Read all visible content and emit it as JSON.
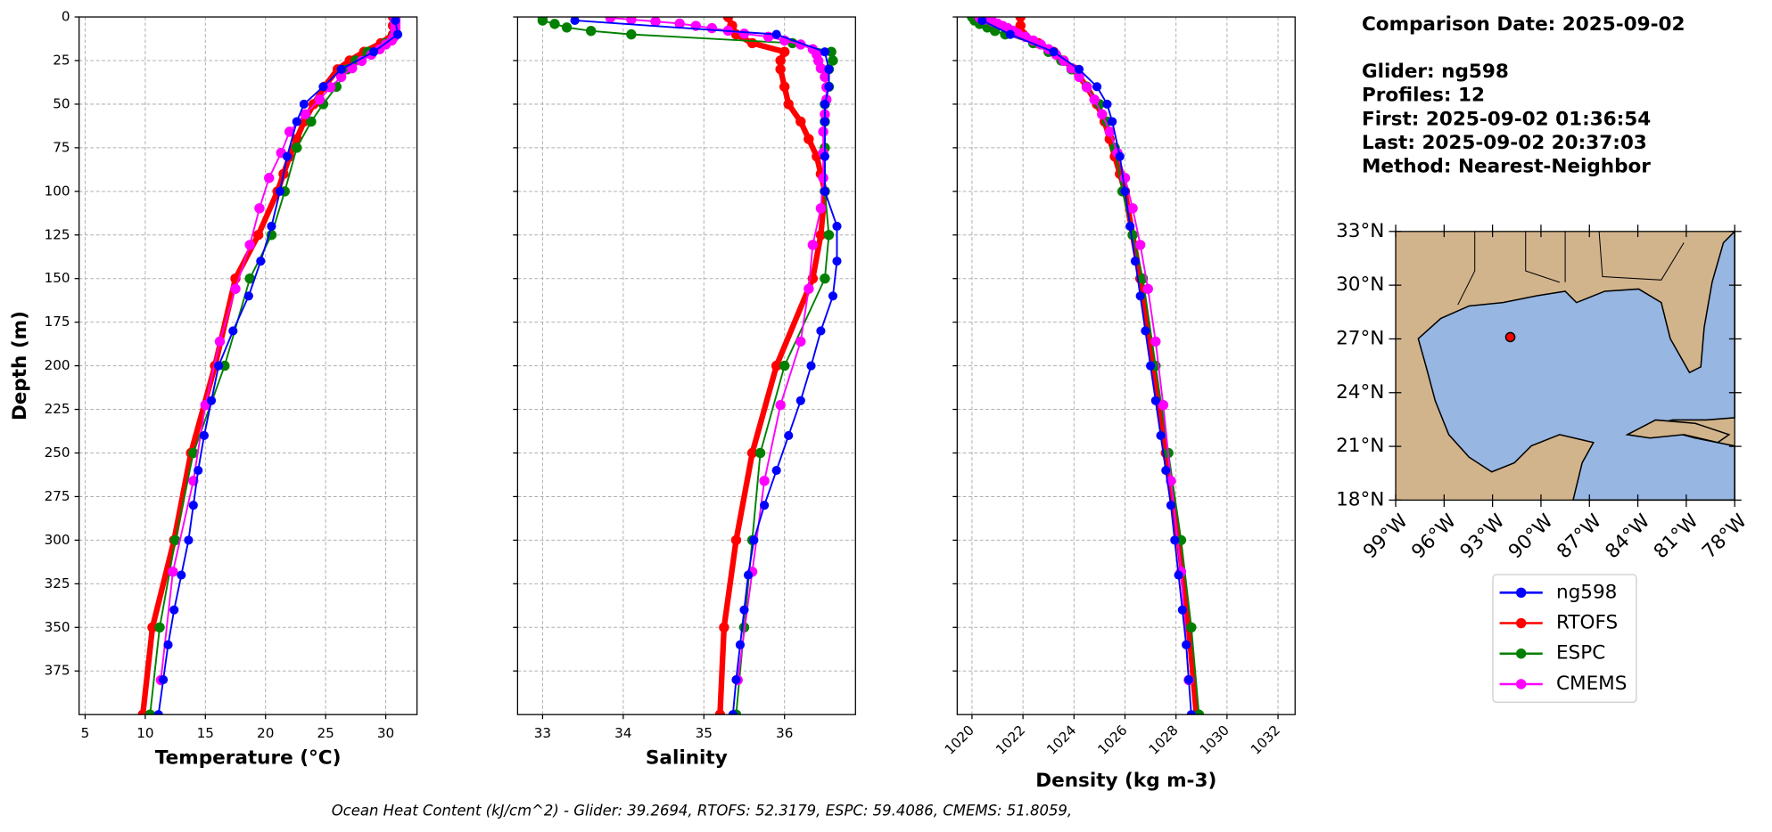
{
  "chart_data": [
    {
      "type": "line",
      "xlabel": "Temperature (°C)",
      "ylabel": "Depth (m)",
      "ytick_labels": true,
      "xlim": [
        4.5,
        32.6
      ],
      "xticks": [
        5,
        10,
        15,
        20,
        25,
        30
      ],
      "ylim": [
        0,
        400
      ],
      "yinvert": true,
      "yticks": [
        0,
        25,
        50,
        75,
        100,
        125,
        150,
        175,
        200,
        225,
        250,
        275,
        300,
        325,
        350,
        375
      ],
      "grid": true,
      "series": [
        {
          "name": "ng598",
          "color": "#0000ff",
          "depth": [
            2,
            10,
            20,
            30,
            40,
            50,
            60,
            80,
            100,
            120,
            140,
            160,
            180,
            200,
            220,
            240,
            260,
            280,
            300,
            320,
            340,
            360,
            380,
            400
          ],
          "values": [
            30.8,
            31.0,
            29.0,
            26.3,
            24.8,
            23.2,
            22.6,
            21.8,
            21.2,
            20.5,
            19.6,
            18.6,
            17.3,
            16.1,
            15.5,
            14.9,
            14.4,
            14.0,
            13.6,
            13.0,
            12.4,
            11.9,
            11.5,
            11.1
          ]
        },
        {
          "name": "RTOFS",
          "color": "#ff0000",
          "depth": [
            0,
            5,
            10,
            15,
            20,
            25,
            30,
            40,
            50,
            60,
            70,
            80,
            90,
            100,
            125,
            150,
            200,
            250,
            300,
            350,
            400
          ],
          "values": [
            30.6,
            30.6,
            30.6,
            29.6,
            28.2,
            27.0,
            26.0,
            24.9,
            24.0,
            23.2,
            22.6,
            22.0,
            21.5,
            21.0,
            19.4,
            17.5,
            15.8,
            13.8,
            12.4,
            10.6,
            9.8
          ]
        },
        {
          "name": "ESPC",
          "color": "#008000",
          "depth": [
            0,
            2,
            4,
            6,
            8,
            10,
            15,
            20,
            25,
            30,
            40,
            50,
            60,
            75,
            100,
            125,
            150,
            200,
            250,
            300,
            350,
            400
          ],
          "values": [
            30.8,
            30.8,
            30.8,
            30.8,
            30.8,
            30.7,
            30.0,
            28.5,
            27.5,
            26.8,
            25.9,
            24.8,
            23.8,
            22.6,
            21.6,
            20.5,
            18.7,
            16.6,
            14.0,
            12.5,
            11.2,
            10.4
          ]
        },
        {
          "name": "CMEMS",
          "color": "#ff00ff",
          "depth": [
            0.5,
            1.5,
            2.6,
            3.8,
            5.1,
            6.4,
            7.9,
            9.6,
            11.4,
            13.5,
            15.8,
            18.5,
            21.6,
            25.2,
            29.4,
            34.4,
            40.3,
            47.4,
            55.8,
            65.8,
            77.9,
            92.3,
            109.7,
            130.7,
            155.9,
            186.1,
            222.5,
            266.0,
            318.1,
            380.2
          ],
          "values": [
            30.8,
            30.8,
            30.8,
            30.8,
            30.8,
            30.8,
            30.8,
            30.8,
            30.7,
            30.5,
            30.0,
            29.5,
            28.8,
            28.0,
            27.2,
            26.3,
            25.4,
            24.5,
            23.3,
            22.0,
            21.3,
            20.3,
            19.5,
            18.7,
            17.5,
            16.2,
            15.0,
            14.0,
            12.3,
            11.3
          ]
        }
      ]
    },
    {
      "type": "line",
      "xlabel": "Salinity",
      "ytick_labels": false,
      "xlim": [
        32.69,
        36.88
      ],
      "xticks": [
        33,
        34,
        35,
        36
      ],
      "ylim": [
        0,
        400
      ],
      "yinvert": true,
      "yticks": [
        0,
        25,
        50,
        75,
        100,
        125,
        150,
        175,
        200,
        225,
        250,
        275,
        300,
        325,
        350,
        375
      ],
      "grid": true,
      "series": [
        {
          "name": "ng598",
          "color": "#0000ff",
          "depth": [
            2,
            10,
            20,
            30,
            40,
            50,
            60,
            80,
            100,
            120,
            140,
            160,
            180,
            200,
            220,
            240,
            260,
            280,
            300,
            320,
            340,
            360,
            380,
            400
          ],
          "values": [
            33.4,
            35.9,
            36.5,
            36.55,
            36.55,
            36.5,
            36.5,
            36.5,
            36.5,
            36.65,
            36.65,
            36.6,
            36.45,
            36.33,
            36.2,
            36.05,
            35.9,
            35.75,
            35.62,
            35.55,
            35.5,
            35.45,
            35.4,
            35.36
          ]
        },
        {
          "name": "RTOFS",
          "color": "#ff0000",
          "depth": [
            0,
            5,
            10,
            15,
            20,
            25,
            30,
            40,
            50,
            60,
            70,
            80,
            90,
            100,
            125,
            150,
            200,
            250,
            300,
            350,
            400
          ],
          "values": [
            35.3,
            35.35,
            35.4,
            35.6,
            36.0,
            35.95,
            35.95,
            36.0,
            36.05,
            36.2,
            36.3,
            36.4,
            36.45,
            36.5,
            36.45,
            36.35,
            35.9,
            35.6,
            35.4,
            35.25,
            35.2
          ]
        },
        {
          "name": "ESPC",
          "color": "#008000",
          "depth": [
            0,
            2,
            4,
            6,
            8,
            10,
            15,
            20,
            25,
            30,
            40,
            50,
            60,
            75,
            100,
            125,
            150,
            200,
            250,
            300,
            350,
            400
          ],
          "values": [
            33.0,
            33.0,
            33.15,
            33.3,
            33.6,
            34.1,
            36.1,
            36.58,
            36.6,
            36.55,
            36.55,
            36.5,
            36.5,
            36.5,
            36.5,
            36.55,
            36.5,
            36.0,
            35.7,
            35.6,
            35.5,
            35.4
          ]
        },
        {
          "name": "CMEMS",
          "color": "#ff00ff",
          "depth": [
            0.5,
            1.5,
            2.6,
            3.8,
            5.1,
            6.4,
            7.9,
            9.6,
            11.4,
            13.5,
            15.8,
            18.5,
            21.6,
            25.2,
            29.4,
            34.4,
            40.3,
            47.4,
            55.8,
            65.8,
            77.9,
            92.3,
            109.7,
            130.7,
            155.9,
            186.1,
            222.5,
            266.0,
            318.1,
            380.2
          ],
          "values": [
            33.84,
            34.1,
            34.4,
            34.7,
            34.9,
            35.1,
            35.3,
            35.5,
            35.8,
            36.0,
            36.2,
            36.35,
            36.4,
            36.42,
            36.45,
            36.5,
            36.52,
            36.52,
            36.5,
            36.48,
            36.48,
            36.48,
            36.45,
            36.35,
            36.3,
            36.2,
            35.95,
            35.75,
            35.6,
            35.42
          ]
        }
      ]
    },
    {
      "type": "line",
      "xlabel": "Density (kg m-3)",
      "ytick_labels": false,
      "xlim": [
        1019.42,
        1032.67
      ],
      "xticks": [
        1020,
        1022,
        1024,
        1026,
        1028,
        1030,
        1032
      ],
      "ylim": [
        0,
        400
      ],
      "yinvert": true,
      "yticks": [
        0,
        25,
        50,
        75,
        100,
        125,
        150,
        175,
        200,
        225,
        250,
        275,
        300,
        325,
        350,
        375
      ],
      "grid": true,
      "series": [
        {
          "name": "ng598",
          "color": "#0000ff",
          "depth": [
            2,
            10,
            20,
            30,
            40,
            50,
            60,
            80,
            100,
            120,
            140,
            160,
            180,
            200,
            220,
            240,
            260,
            280,
            300,
            320,
            340,
            360,
            380,
            400
          ],
          "values": [
            1020.4,
            1021.5,
            1023.2,
            1024.2,
            1024.9,
            1025.3,
            1025.5,
            1025.8,
            1026.0,
            1026.2,
            1026.4,
            1026.6,
            1026.8,
            1027.0,
            1027.2,
            1027.4,
            1027.6,
            1027.8,
            1027.95,
            1028.1,
            1028.25,
            1028.4,
            1028.5,
            1028.6
          ]
        },
        {
          "name": "RTOFS",
          "color": "#ff0000",
          "depth": [
            0,
            5,
            10,
            15,
            20,
            25,
            30,
            40,
            50,
            60,
            70,
            80,
            90,
            100,
            125,
            150,
            200,
            250,
            300,
            350,
            400
          ],
          "values": [
            1021.9,
            1021.9,
            1022.0,
            1022.6,
            1023.2,
            1023.6,
            1024.0,
            1024.5,
            1024.9,
            1025.2,
            1025.4,
            1025.6,
            1025.8,
            1026.0,
            1026.3,
            1026.6,
            1027.1,
            1027.6,
            1028.1,
            1028.5,
            1028.8
          ]
        },
        {
          "name": "ESPC",
          "color": "#008000",
          "depth": [
            0,
            2,
            4,
            6,
            8,
            10,
            15,
            20,
            25,
            30,
            40,
            50,
            60,
            75,
            100,
            125,
            150,
            200,
            250,
            300,
            350,
            400
          ],
          "values": [
            1020.0,
            1020.1,
            1020.3,
            1020.6,
            1020.9,
            1021.3,
            1022.4,
            1023.0,
            1023.5,
            1023.9,
            1024.5,
            1025.0,
            1025.3,
            1025.6,
            1025.9,
            1026.3,
            1026.7,
            1027.2,
            1027.7,
            1028.2,
            1028.6,
            1028.9
          ]
        },
        {
          "name": "CMEMS",
          "color": "#ff00ff",
          "depth": [
            0.5,
            1.5,
            2.6,
            3.8,
            5.1,
            6.4,
            7.9,
            9.6,
            11.4,
            13.5,
            15.8,
            18.5,
            21.6,
            25.2,
            29.4,
            34.4,
            40.3,
            47.4,
            55.8,
            65.8,
            77.9,
            92.3,
            109.7,
            130.7,
            155.9,
            186.1,
            222.5,
            266.0,
            318.1,
            380.2
          ],
          "values": [
            1020.3,
            1020.5,
            1020.8,
            1021.0,
            1021.2,
            1021.4,
            1021.6,
            1021.8,
            1022.1,
            1022.4,
            1022.7,
            1023.0,
            1023.3,
            1023.6,
            1023.9,
            1024.2,
            1024.5,
            1024.8,
            1025.1,
            1025.4,
            1025.7,
            1026.0,
            1026.3,
            1026.6,
            1026.9,
            1027.2,
            1027.5,
            1027.8,
            1028.2,
            1028.5
          ]
        }
      ]
    },
    {
      "type": "map",
      "xlim": [
        -99,
        -78
      ],
      "ylim": [
        18,
        33
      ],
      "xticks": [
        {
          "value": -99,
          "label": "99°W"
        },
        {
          "value": -96,
          "label": "96°W"
        },
        {
          "value": -93,
          "label": "93°W"
        },
        {
          "value": -90,
          "label": "90°W"
        },
        {
          "value": -87,
          "label": "87°W"
        },
        {
          "value": -84,
          "label": "84°W"
        },
        {
          "value": -81,
          "label": "81°W"
        },
        {
          "value": -78,
          "label": "78°W"
        }
      ],
      "yticks": [
        {
          "value": 18,
          "label": "18°N"
        },
        {
          "value": 21,
          "label": "21°N"
        },
        {
          "value": 24,
          "label": "24°N"
        },
        {
          "value": 27,
          "label": "27°N"
        },
        {
          "value": 30,
          "label": "30°N"
        },
        {
          "value": 33,
          "label": "33°N"
        }
      ],
      "point": {
        "lon": -91.9,
        "lat": 27.1,
        "color": "#ff0000"
      }
    }
  ],
  "info_lines": [
    "Comparison Date: 2025-09-02",
    "Glider: ng598",
    "Profiles: 12",
    "First: 2025-09-02 01:36:54",
    "Last: 2025-09-02 20:37:03",
    "Method: Nearest-Neighbor"
  ],
  "annotation": "Ocean Heat Content (kJ/cm^2) - Glider: 39.2694,  RTOFS: 52.3179,  ESPC: 59.4086,  CMEMS: 51.8059,"
}
